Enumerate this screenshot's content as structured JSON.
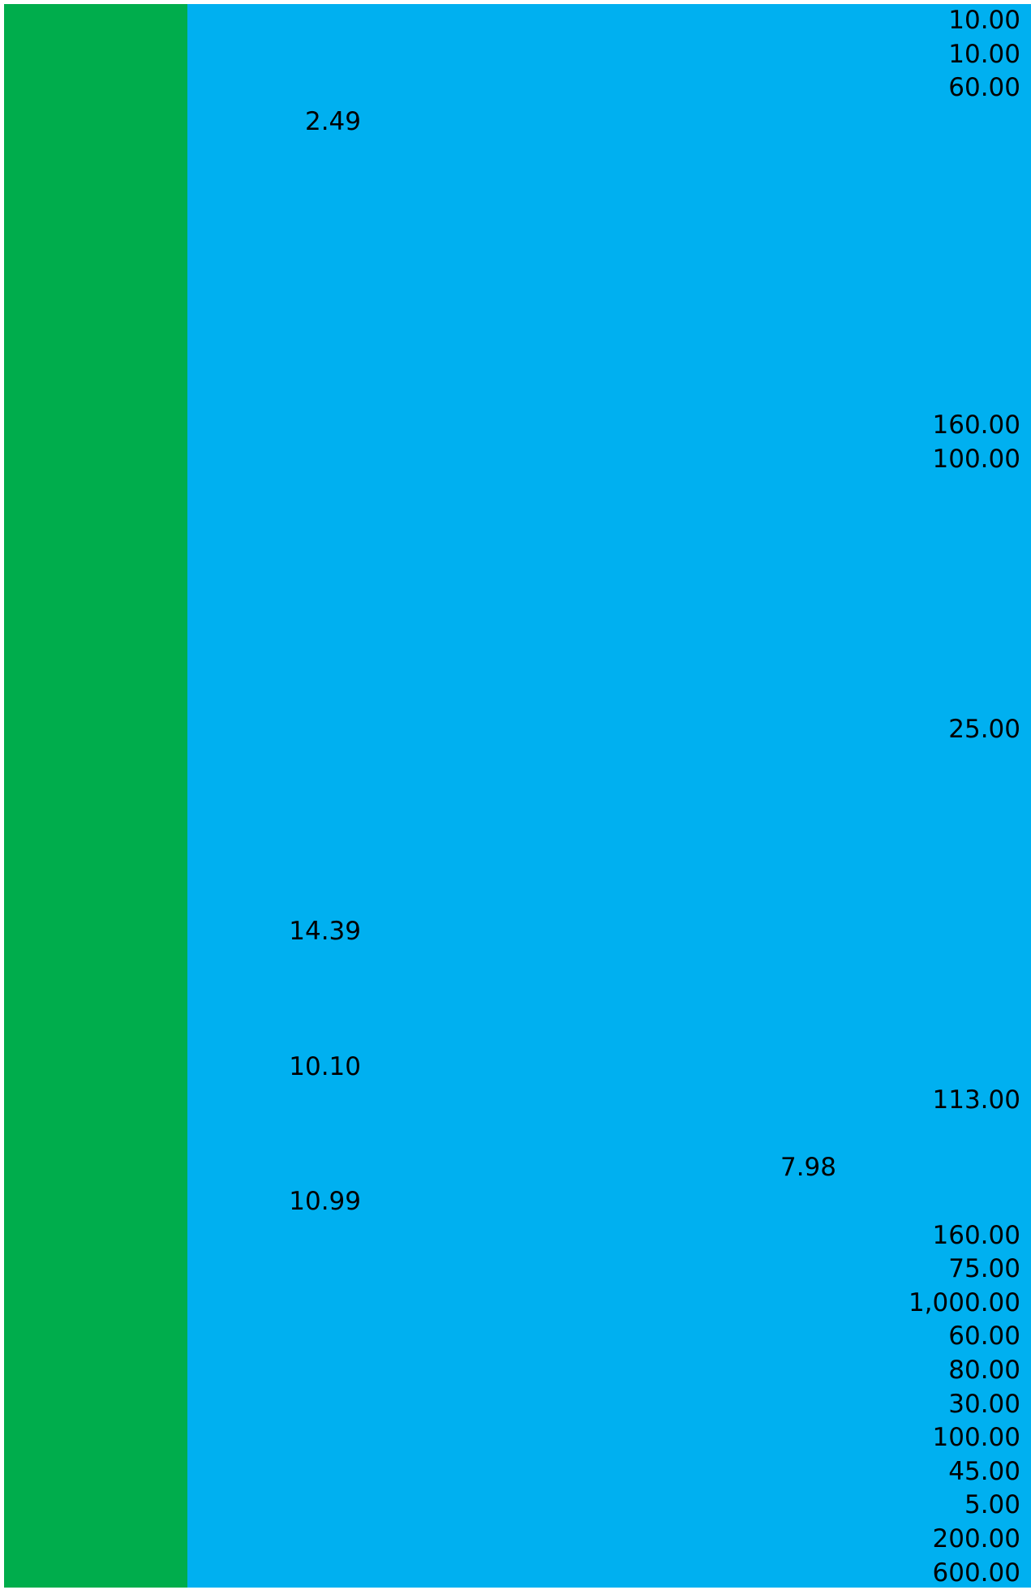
{
  "colors": {
    "column_a_fill": "#00ad4c",
    "column_b_fill": "#00b0f0",
    "text": "#000000"
  },
  "column_a": [
    {
      "row": 1,
      "value": "10.00"
    },
    {
      "row": 2,
      "value": "10.00"
    },
    {
      "row": 3,
      "value": "60.00"
    },
    {
      "row": 13,
      "value": "160.00"
    },
    {
      "row": 14,
      "value": "100.00"
    },
    {
      "row": 22,
      "value": "25.00"
    },
    {
      "row": 33,
      "value": "113.00"
    },
    {
      "row": 37,
      "value": "160.00"
    },
    {
      "row": 38,
      "value": "75.00"
    },
    {
      "row": 39,
      "value": "1,000.00"
    },
    {
      "row": 40,
      "value": "60.00"
    },
    {
      "row": 41,
      "value": "80.00"
    },
    {
      "row": 42,
      "value": "30.00"
    },
    {
      "row": 43,
      "value": "100.00"
    },
    {
      "row": 44,
      "value": "45.00"
    },
    {
      "row": 45,
      "value": "5.00"
    },
    {
      "row": 46,
      "value": "200.00"
    },
    {
      "row": 47,
      "value": "600.00"
    }
  ],
  "column_b": [
    {
      "row": 4,
      "value": "2.49"
    },
    {
      "row": 28,
      "value": "14.39"
    },
    {
      "row": 32,
      "value": "10.10"
    },
    {
      "row": 36,
      "value": "10.99"
    }
  ],
  "column_c": [
    {
      "row": 35,
      "value": "7.98"
    }
  ]
}
